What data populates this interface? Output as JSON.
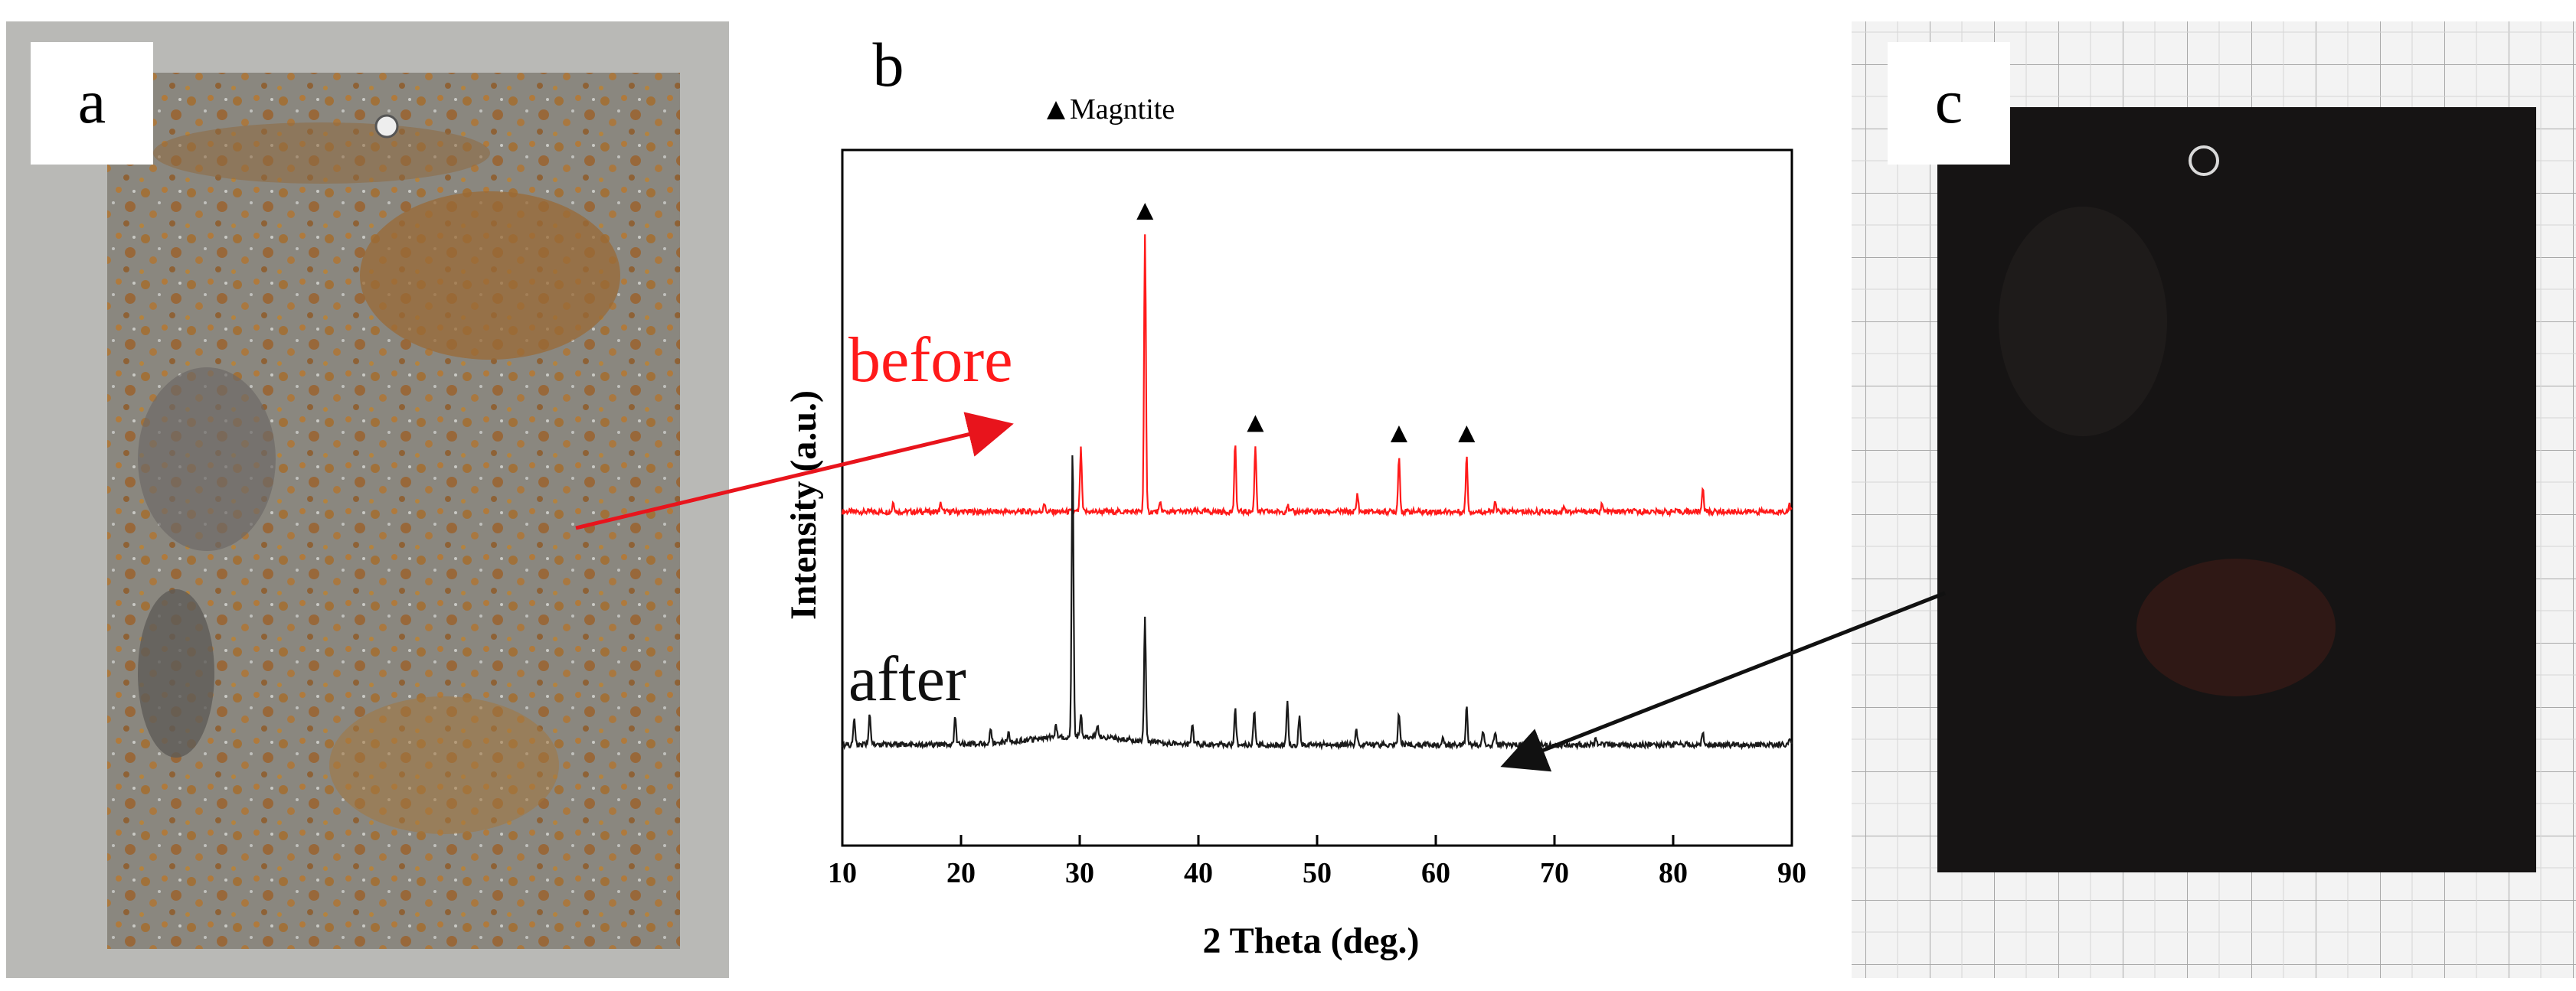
{
  "panels": {
    "a": {
      "label": "a"
    },
    "b": {
      "label": "b"
    },
    "c": {
      "label": "c"
    }
  },
  "chart_data": {
    "type": "line",
    "xlabel": "2 Theta (deg.)",
    "ylabel": "Intensity (a.u.)",
    "xlim": [
      10,
      90
    ],
    "x_ticks": [
      "10",
      "20",
      "30",
      "40",
      "50",
      "60",
      "70",
      "80",
      "90"
    ],
    "legend": {
      "marker": "▲",
      "text": "Magntite"
    },
    "y_ticks_shown": false,
    "grid": false,
    "series": [
      {
        "name": "before",
        "color": "#ff1a1a",
        "baseline": 0.48,
        "peaks": [
          {
            "x": 14.3,
            "h": 0.015
          },
          {
            "x": 18.3,
            "h": 0.012
          },
          {
            "x": 27.0,
            "h": 0.013
          },
          {
            "x": 30.1,
            "h": 0.09
          },
          {
            "x": 35.5,
            "h": 0.4
          },
          {
            "x": 36.8,
            "h": 0.012
          },
          {
            "x": 43.1,
            "h": 0.095
          },
          {
            "x": 44.8,
            "h": 0.095
          },
          {
            "x": 47.5,
            "h": 0.01
          },
          {
            "x": 53.4,
            "h": 0.025
          },
          {
            "x": 56.9,
            "h": 0.08
          },
          {
            "x": 62.6,
            "h": 0.08
          },
          {
            "x": 65.0,
            "h": 0.012
          },
          {
            "x": 70.8,
            "h": 0.01
          },
          {
            "x": 74.0,
            "h": 0.01
          },
          {
            "x": 82.5,
            "h": 0.035
          },
          {
            "x": 89.8,
            "h": 0.01
          }
        ]
      },
      {
        "name": "after",
        "color": "#1a1a1a",
        "baseline": 0.145,
        "peaks": [
          {
            "x": 11.0,
            "h": 0.04
          },
          {
            "x": 12.3,
            "h": 0.045
          },
          {
            "x": 19.5,
            "h": 0.04
          },
          {
            "x": 22.5,
            "h": 0.02
          },
          {
            "x": 24.0,
            "h": 0.015
          },
          {
            "x": 28.0,
            "h": 0.02
          },
          {
            "x": 29.4,
            "h": 0.42
          },
          {
            "x": 30.1,
            "h": 0.03
          },
          {
            "x": 31.5,
            "h": 0.015
          },
          {
            "x": 35.5,
            "h": 0.175
          },
          {
            "x": 39.5,
            "h": 0.03
          },
          {
            "x": 43.1,
            "h": 0.05
          },
          {
            "x": 44.7,
            "h": 0.05
          },
          {
            "x": 47.5,
            "h": 0.06
          },
          {
            "x": 48.5,
            "h": 0.04
          },
          {
            "x": 53.3,
            "h": 0.02
          },
          {
            "x": 56.9,
            "h": 0.045
          },
          {
            "x": 60.6,
            "h": 0.012
          },
          {
            "x": 62.6,
            "h": 0.055
          },
          {
            "x": 64.0,
            "h": 0.02
          },
          {
            "x": 65.0,
            "h": 0.02
          },
          {
            "x": 73.5,
            "h": 0.01
          },
          {
            "x": 82.5,
            "h": 0.02
          },
          {
            "x": 89.8,
            "h": 0.01
          }
        ]
      }
    ],
    "magnetite_markers": [
      35.5,
      44.8,
      56.9,
      62.6
    ],
    "annotations": [
      "before",
      "after"
    ]
  }
}
